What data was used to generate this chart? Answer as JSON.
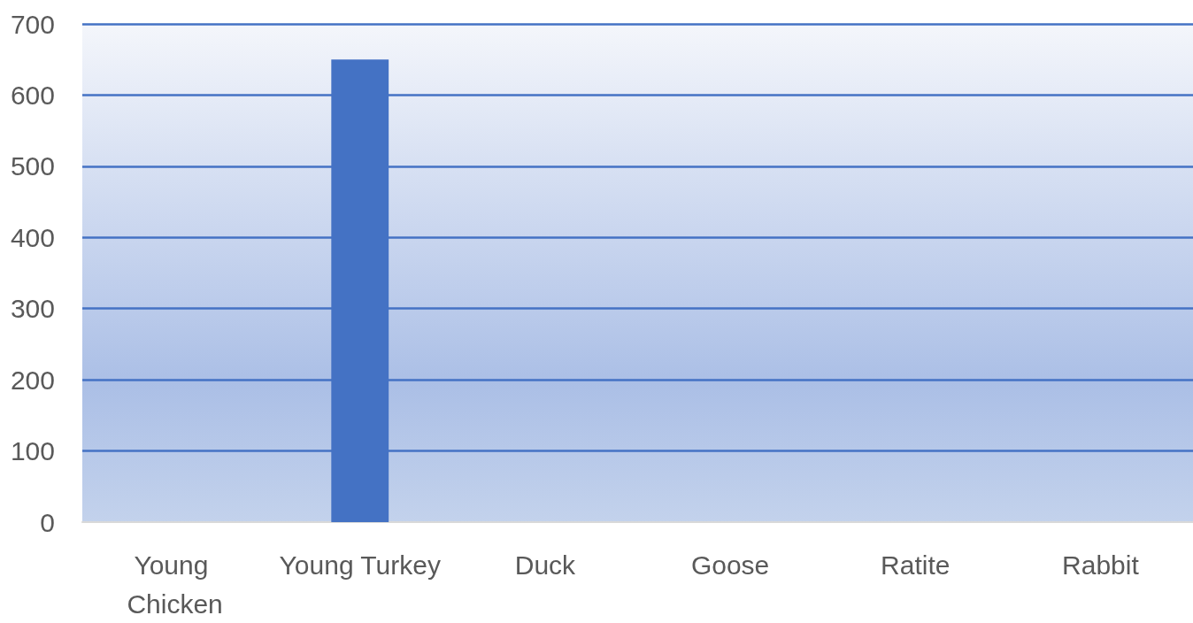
{
  "chart_data": {
    "type": "bar",
    "categories": [
      "Young Chicken",
      "Young Turkey",
      "Duck",
      "Goose",
      "Ratite",
      "Rabbit"
    ],
    "values": [
      0,
      650,
      0,
      0,
      0,
      0
    ],
    "color": "#4472c4",
    "ylim": [
      0,
      700
    ],
    "yticks": [
      0,
      100,
      200,
      300,
      400,
      500,
      600,
      700
    ],
    "grid": "y"
  }
}
